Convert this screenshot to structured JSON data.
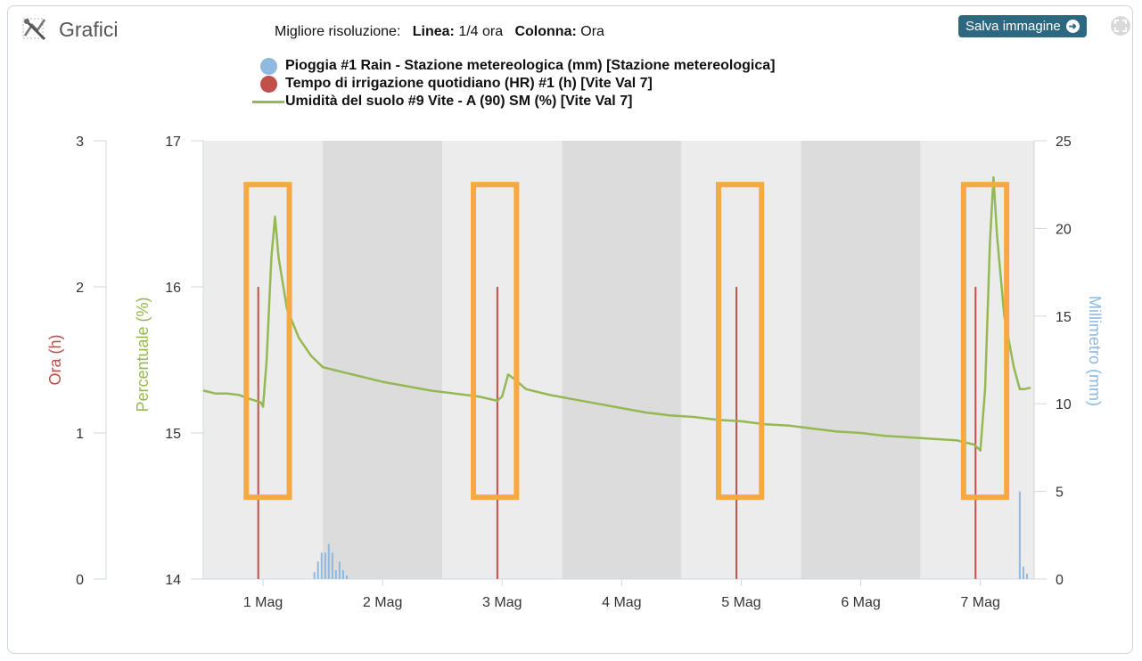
{
  "header": {
    "title": "Grafici",
    "title_icon": "chart-tools-icon",
    "resolution_prefix": "Migliore risoluzione:",
    "line_label": "Linea:",
    "line_value": "1/4 ora",
    "column_label": "Colonna:",
    "column_value": "Ora",
    "save_label": "Salva immagine",
    "expand_icon": "expand-icon"
  },
  "colors": {
    "rain": "#8fb9de",
    "irrigation": "#c1504a",
    "moisture": "#96b853",
    "highlight": "#f7a941",
    "band_light": "#ececec",
    "band_dark": "#dcdcdc"
  },
  "chart_data": {
    "type": "line",
    "legend": [
      "Pioggia #1 Rain - Stazione metereologica (mm) [Stazione metereologica]",
      "Tempo di irrigazione quotidiano (HR) #1 (h) [Vite Val 7]",
      "Umidità del suolo #9 Vite - A (90) SM (%) [Vite Val 7]"
    ],
    "legend_placement": "top",
    "x_axis": {
      "type": "date",
      "labels": [
        "1 Mag",
        "2 Mag",
        "3 Mag",
        "4 Mag",
        "5 Mag",
        "6 Mag",
        "7 Mag"
      ],
      "range_days": [
        0.5,
        7.45
      ]
    },
    "axes": {
      "hours": {
        "label": "Ora (h)",
        "range": [
          0,
          3
        ],
        "ticks": [
          "0",
          "1",
          "2",
          "3"
        ]
      },
      "percent": {
        "label": "Percentuale (%)",
        "range": [
          14,
          17
        ],
        "ticks": [
          "14",
          "15",
          "16",
          "17"
        ]
      },
      "mm": {
        "label": "Millimetro (mm)",
        "range": [
          0,
          25
        ],
        "ticks": [
          "0",
          "5",
          "10",
          "15",
          "20",
          "25"
        ]
      }
    },
    "series": [
      {
        "name": "Tempo di irrigazione quotidiano (HR) #1 (h) [Vite Val 7]",
        "axis": "hours",
        "kind": "column",
        "points": [
          [
            0.96,
            2.0
          ],
          [
            2.96,
            2.0
          ],
          [
            4.96,
            2.0
          ],
          [
            6.96,
            2.0
          ]
        ]
      },
      {
        "name": "Pioggia #1 Rain - Stazione metereologica (mm) [Stazione metereologica]",
        "axis": "mm",
        "kind": "column",
        "points": [
          [
            1.43,
            0.4
          ],
          [
            1.46,
            1.0
          ],
          [
            1.49,
            1.5
          ],
          [
            1.52,
            1.5
          ],
          [
            1.55,
            2.0
          ],
          [
            1.58,
            1.5
          ],
          [
            1.61,
            0.5
          ],
          [
            1.64,
            1.0
          ],
          [
            1.67,
            0.5
          ],
          [
            1.7,
            0.2
          ],
          [
            7.33,
            5.0
          ],
          [
            7.36,
            0.7
          ],
          [
            7.39,
            0.3
          ]
        ]
      },
      {
        "name": "Umidità del suolo #9 Vite - A (90) SM (%) [Vite Val 7]",
        "axis": "percent",
        "kind": "line",
        "points": [
          [
            0.5,
            15.29
          ],
          [
            0.6,
            15.27
          ],
          [
            0.7,
            15.27
          ],
          [
            0.8,
            15.26
          ],
          [
            0.9,
            15.23
          ],
          [
            0.98,
            15.21
          ],
          [
            1.0,
            15.18
          ],
          [
            1.03,
            15.5
          ],
          [
            1.07,
            16.2
          ],
          [
            1.1,
            16.48
          ],
          [
            1.13,
            16.2
          ],
          [
            1.2,
            15.85
          ],
          [
            1.3,
            15.65
          ],
          [
            1.4,
            15.53
          ],
          [
            1.5,
            15.45
          ],
          [
            1.6,
            15.43
          ],
          [
            1.7,
            15.41
          ],
          [
            1.8,
            15.39
          ],
          [
            1.9,
            15.37
          ],
          [
            2.0,
            15.35
          ],
          [
            2.2,
            15.32
          ],
          [
            2.4,
            15.29
          ],
          [
            2.6,
            15.27
          ],
          [
            2.8,
            15.25
          ],
          [
            2.96,
            15.22
          ],
          [
            3.0,
            15.25
          ],
          [
            3.05,
            15.4
          ],
          [
            3.1,
            15.37
          ],
          [
            3.2,
            15.3
          ],
          [
            3.4,
            15.26
          ],
          [
            3.6,
            15.23
          ],
          [
            3.8,
            15.2
          ],
          [
            4.0,
            15.17
          ],
          [
            4.2,
            15.14
          ],
          [
            4.4,
            15.12
          ],
          [
            4.6,
            15.11
          ],
          [
            4.8,
            15.09
          ],
          [
            5.0,
            15.08
          ],
          [
            5.2,
            15.06
          ],
          [
            5.4,
            15.05
          ],
          [
            5.6,
            15.03
          ],
          [
            5.8,
            15.01
          ],
          [
            6.0,
            15.0
          ],
          [
            6.2,
            14.98
          ],
          [
            6.4,
            14.97
          ],
          [
            6.6,
            14.96
          ],
          [
            6.8,
            14.95
          ],
          [
            6.95,
            14.92
          ],
          [
            7.0,
            14.88
          ],
          [
            7.04,
            15.3
          ],
          [
            7.08,
            16.3
          ],
          [
            7.11,
            16.75
          ],
          [
            7.14,
            16.35
          ],
          [
            7.2,
            15.8
          ],
          [
            7.28,
            15.45
          ],
          [
            7.33,
            15.3
          ],
          [
            7.37,
            15.3
          ],
          [
            7.42,
            15.31
          ]
        ]
      }
    ],
    "day_bands": [
      "light",
      "dark",
      "light",
      "dark",
      "light",
      "dark",
      "light"
    ],
    "highlight_boxes": [
      {
        "x": [
          0.86,
          1.22
        ],
        "y_percent": [
          14.56,
          16.7
        ]
      },
      {
        "x": [
          2.76,
          3.12
        ],
        "y_percent": [
          14.56,
          16.7
        ]
      },
      {
        "x": [
          4.81,
          5.17
        ],
        "y_percent": [
          14.56,
          16.7
        ]
      },
      {
        "x": [
          6.86,
          7.22
        ],
        "y_percent": [
          14.56,
          16.7
        ]
      }
    ]
  }
}
